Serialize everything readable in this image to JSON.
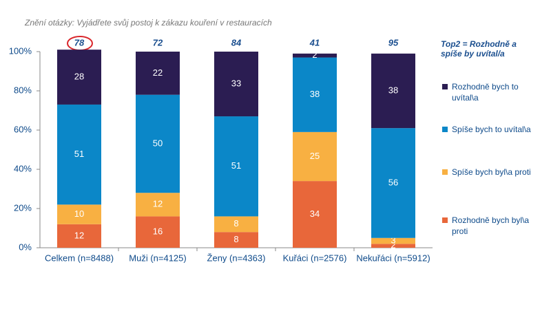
{
  "chart_data": {
    "type": "stacked_bar",
    "subtitle": "Znění otázky: Vyjádřete svůj postoj k zákazu kouření v restauracích",
    "categories": [
      "Celkem (n=8488)",
      "Muži (n=4125)",
      "Ženy (n=4363)",
      "Kuřáci (n=2576)",
      "Nekuřáci (n=5912)"
    ],
    "series": [
      {
        "name": "Rozhodně bych byl\\a proti",
        "color": "#e8673a",
        "values": [
          12,
          16,
          8,
          34,
          2
        ]
      },
      {
        "name": "Spíše bych byl\\a proti",
        "color": "#f8b042",
        "values": [
          10,
          12,
          8,
          25,
          3
        ]
      },
      {
        "name": "Spíše bych to uvítal\\a",
        "color": "#0b87c8",
        "values": [
          51,
          50,
          51,
          38,
          56
        ]
      },
      {
        "name": "Rozhodně bych to uvítal\\a",
        "color": "#2b1d52",
        "values": [
          28,
          22,
          33,
          2,
          38
        ]
      }
    ],
    "top2_label": "Top2 = Rozhodně a spíše by uvítal/a",
    "top2_values": [
      78,
      72,
      84,
      41,
      95
    ],
    "ylim": [
      0,
      100
    ],
    "yticks": [
      {
        "value": 0,
        "label": "0%"
      },
      {
        "value": 20,
        "label": "20%"
      },
      {
        "value": 40,
        "label": "40%"
      },
      {
        "value": 60,
        "label": "60%"
      },
      {
        "value": 80,
        "label": "80%"
      },
      {
        "value": 100,
        "label": "100%"
      }
    ]
  }
}
